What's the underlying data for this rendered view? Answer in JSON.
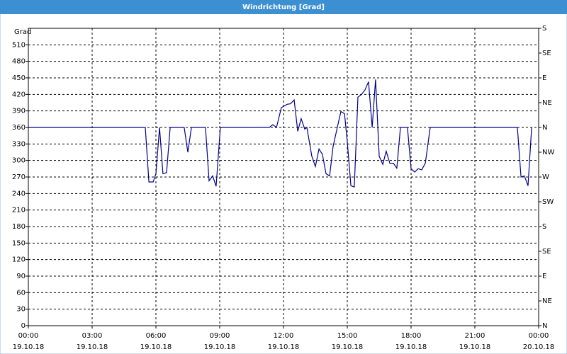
{
  "chart_data": {
    "type": "line",
    "title": "Windrichtung [Grad]",
    "ylabel": "Grad",
    "x": [
      0,
      5.5,
      5.67,
      5.87,
      6.0,
      6.17,
      6.33,
      6.5,
      6.67,
      7.33,
      7.5,
      7.67,
      8.33,
      8.5,
      8.67,
      8.83,
      9.03,
      11.33,
      11.5,
      11.67,
      11.9,
      12.17,
      12.33,
      12.5,
      12.67,
      12.83,
      13,
      13.1,
      13.33,
      13.5,
      13.67,
      13.83,
      14,
      14.17,
      14.33,
      14.53,
      14.7,
      14.87,
      15,
      15.17,
      15.33,
      15.5,
      15.67,
      15.83,
      16,
      16.17,
      16.33,
      16.5,
      16.67,
      16.83,
      17,
      17.17,
      17.33,
      17.5,
      17.83,
      18,
      18.17,
      18.33,
      18.5,
      18.67,
      18.9,
      23,
      23.17,
      23.33,
      23.5,
      23.67
    ],
    "values": [
      360,
      360,
      261,
      261,
      276,
      360,
      276,
      278,
      360,
      360,
      315,
      360,
      360,
      263,
      272,
      253,
      360,
      360,
      365,
      360,
      396,
      402,
      403,
      410,
      353,
      376,
      357,
      360,
      308,
      289,
      321,
      311,
      276,
      272,
      325,
      360,
      389,
      385,
      334,
      254,
      252,
      415,
      420,
      428,
      443,
      360,
      447,
      308,
      293,
      317,
      295,
      295,
      286,
      360,
      360,
      285,
      279,
      285,
      283,
      295,
      360,
      360,
      270,
      272,
      254,
      360
    ],
    "color": "#00008b",
    "xlim": [
      0,
      24
    ],
    "xticks": [
      {
        "value": 0,
        "label": "00:00"
      },
      {
        "value": 3,
        "label": "03:00"
      },
      {
        "value": 6,
        "label": "06:00"
      },
      {
        "value": 9,
        "label": "09:00"
      },
      {
        "value": 12,
        "label": "12:00"
      },
      {
        "value": 15,
        "label": "15:00"
      },
      {
        "value": 18,
        "label": "18:00"
      },
      {
        "value": 21,
        "label": "21:00"
      },
      {
        "value": 24,
        "label": "00:00"
      }
    ],
    "xtick_dates": [
      "19.10.18",
      "19.10.18",
      "19.10.18",
      "19.10.18",
      "19.10.18",
      "19.10.18",
      "19.10.18",
      "19.10.18",
      "20.10.18"
    ],
    "ylim": [
      0,
      540
    ],
    "yticks": [
      0,
      30,
      60,
      90,
      120,
      150,
      180,
      210,
      240,
      270,
      300,
      330,
      360,
      390,
      420,
      450,
      480,
      510
    ],
    "y2lim": [
      0,
      540
    ],
    "y2ticks": [
      {
        "value": 0,
        "label": "N"
      },
      {
        "value": 45,
        "label": "NE"
      },
      {
        "value": 90,
        "label": "E"
      },
      {
        "value": 135,
        "label": "SE"
      },
      {
        "value": 180,
        "label": "S"
      },
      {
        "value": 225,
        "label": "SW"
      },
      {
        "value": 270,
        "label": "W"
      },
      {
        "value": 315,
        "label": "NW"
      },
      {
        "value": 360,
        "label": "N"
      },
      {
        "value": 405,
        "label": "NE"
      },
      {
        "value": 450,
        "label": "E"
      },
      {
        "value": 495,
        "label": "SE"
      },
      {
        "value": 540,
        "label": "S"
      }
    ],
    "grid": true
  }
}
